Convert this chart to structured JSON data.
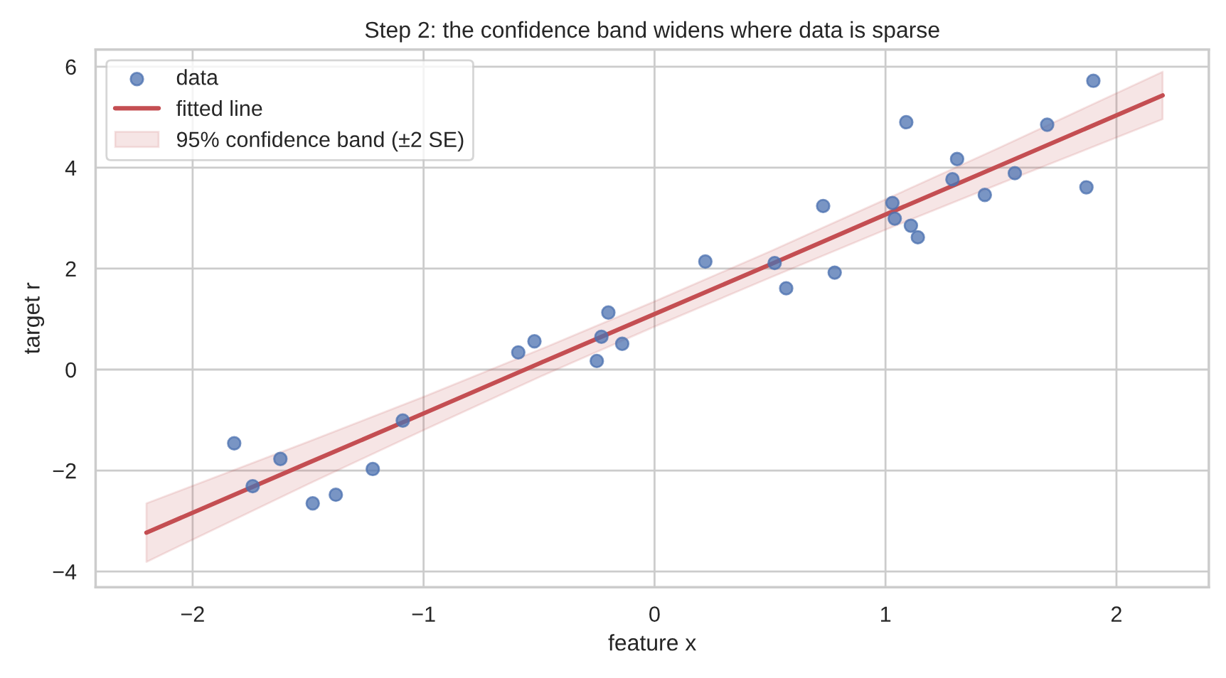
{
  "chart_data": {
    "type": "scatter",
    "title": "Step 2: the confidence band widens where data is sparse",
    "xlabel": "feature x",
    "ylabel": "target r",
    "xlim": [
      -2.42,
      2.4
    ],
    "ylim": [
      -4.31,
      6.34
    ],
    "xticks": [
      {
        "value": -2,
        "label": "−2"
      },
      {
        "value": -1,
        "label": "−1"
      },
      0,
      1,
      2
    ],
    "yticks": [
      {
        "value": -4,
        "label": "−4"
      },
      {
        "value": -2,
        "label": "−2"
      },
      0,
      2,
      4,
      6
    ],
    "grid": true,
    "legend": "top left",
    "annotations": [
      "95% confidence band (±2 SE)"
    ],
    "series": [
      {
        "name": "data",
        "color": "#4c72b0",
        "marker": "circle",
        "x": [
          -1.82,
          -1.74,
          -1.62,
          -1.48,
          -1.38,
          -1.22,
          -1.09,
          -0.59,
          -0.52,
          -0.25,
          -0.23,
          -0.2,
          -0.14,
          0.22,
          0.52,
          0.57,
          0.73,
          0.78,
          1.03,
          1.04,
          1.09,
          1.11,
          1.14,
          1.29,
          1.31,
          1.43,
          1.56,
          1.7,
          1.87,
          1.9
        ],
        "values": [
          -1.46,
          -2.31,
          -1.77,
          -2.65,
          -2.48,
          -1.97,
          -1.01,
          0.34,
          0.56,
          0.17,
          0.65,
          1.13,
          0.51,
          2.14,
          2.11,
          1.61,
          3.24,
          1.92,
          3.3,
          2.99,
          4.9,
          2.85,
          2.62,
          3.77,
          4.17,
          3.46,
          3.89,
          4.85,
          3.61,
          5.72
        ]
      },
      {
        "type": "line",
        "name": "fitted line",
        "color": "#c44e52",
        "line_style": "solid",
        "x": [
          -2.2,
          -1.5,
          -1,
          -0.5,
          0,
          0.5,
          1,
          1.5,
          2.2
        ],
        "values": [
          -3.23,
          -1.85,
          -0.87,
          0.12,
          1.1,
          2.08,
          3.07,
          4.05,
          5.43
        ],
        "lower": [
          -3.81,
          -2.27,
          -1.2,
          -0.15,
          0.85,
          1.82,
          2.77,
          3.69,
          4.96
        ],
        "upper": [
          -2.65,
          -1.43,
          -0.54,
          0.39,
          1.35,
          2.34,
          3.37,
          4.41,
          5.9
        ]
      }
    ]
  }
}
